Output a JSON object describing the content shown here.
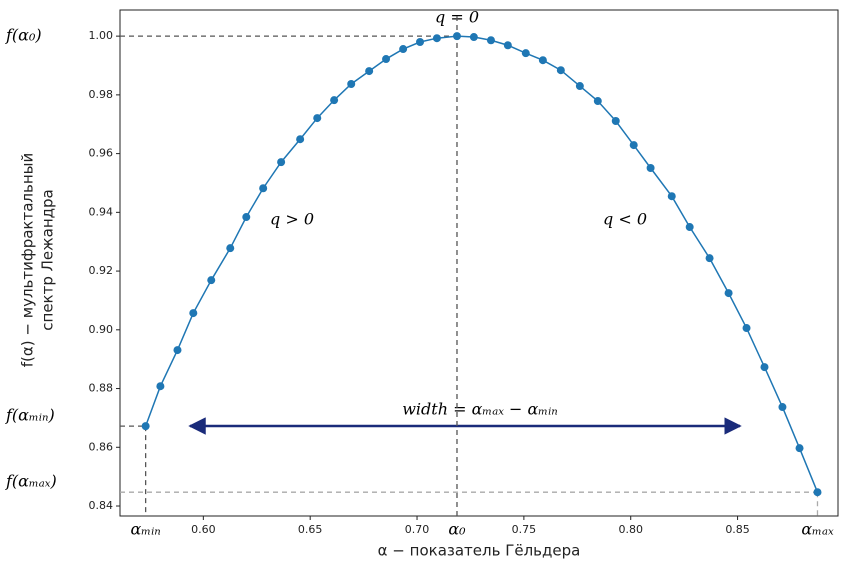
{
  "chart_data": {
    "type": "line",
    "x_label": "α − показатель Гёльдера",
    "y_label": [
      "f(α) − мультифрактальный",
      "спектр Лежандра"
    ],
    "series": [
      {
        "color": "#1f77b4",
        "x": [
          0.573,
          0.5799,
          0.5879,
          0.5953,
          0.6037,
          0.6126,
          0.6201,
          0.628,
          0.6364,
          0.6453,
          0.6533,
          0.6612,
          0.6692,
          0.6776,
          0.6855,
          0.6935,
          0.7014,
          0.7093,
          0.7187,
          0.7266,
          0.7346,
          0.7425,
          0.7509,
          0.7589,
          0.7673,
          0.7762,
          0.7846,
          0.793,
          0.8014,
          0.8093,
          0.8192,
          0.8276,
          0.8369,
          0.8458,
          0.8542,
          0.8626,
          0.871,
          0.879,
          0.8874
        ],
        "values": [
          0.8672,
          0.8808,
          0.8931,
          0.9057,
          0.9169,
          0.9278,
          0.9384,
          0.9482,
          0.9571,
          0.9649,
          0.9721,
          0.9782,
          0.9837,
          0.9881,
          0.9922,
          0.9956,
          0.998,
          0.9993,
          1.0,
          0.9997,
          0.9986,
          0.9969,
          0.9942,
          0.9918,
          0.9884,
          0.983,
          0.9779,
          0.9711,
          0.9629,
          0.9551,
          0.9455,
          0.935,
          0.9244,
          0.9125,
          0.9006,
          0.8873,
          0.8737,
          0.8597,
          0.8447
        ]
      }
    ],
    "xlim": [
      0.561,
      0.897
    ],
    "ylim": [
      0.8366,
      1.0089
    ],
    "xticks": [
      {
        "value": 0.6,
        "label": "0.60"
      },
      0.65,
      {
        "value": 0.7,
        "label": "0.70"
      },
      0.75,
      {
        "value": 0.8,
        "label": "0.80"
      },
      0.85
    ],
    "yticks": [
      0.84,
      0.86,
      0.88,
      {
        "value": 0.9,
        "label": "0.90"
      },
      0.92,
      0.94,
      0.96,
      0.98,
      {
        "value": 1,
        "label": "1.00"
      }
    ],
    "references": [
      {
        "x_label": "αₘᵢₙ",
        "y_label": "f(αₘᵢₙ)",
        "x": 0.573,
        "y": 0.8672
      },
      {
        "x_label": "α₀",
        "y_label": "f(α₀)",
        "x": 0.7187,
        "y": 1.0
      },
      {
        "x_label": "αₘₐₓ",
        "y_label": "f(αₘₐₓ)",
        "x": 0.8874,
        "y": 0.8447
      }
    ],
    "annotations": [
      "q = 0",
      "q > 0",
      "q < 0",
      "width = αₘₐₓ − αₘᵢₙ"
    ]
  }
}
